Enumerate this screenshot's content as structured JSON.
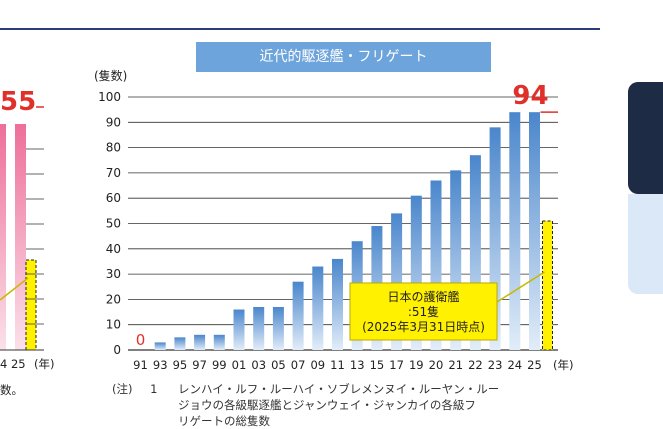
{
  "chart_data": [
    {
      "type": "bar",
      "title": "近代的駆逐艦・フリゲート",
      "ylabel": "(隻数)",
      "xlabel": "(年)",
      "ylim": [
        0,
        100
      ],
      "yticks": [
        0,
        10,
        20,
        30,
        40,
        50,
        60,
        70,
        80,
        90,
        100
      ],
      "categories": [
        "91",
        "93",
        "95",
        "97",
        "99",
        "01",
        "03",
        "05",
        "07",
        "09",
        "11",
        "13",
        "15",
        "17",
        "19",
        "20",
        "21",
        "22",
        "23",
        "24",
        "25"
      ],
      "series": [
        {
          "values": [
            0,
            3,
            5,
            6,
            6,
            16,
            17,
            17,
            27,
            33,
            36,
            43,
            49,
            54,
            61,
            67,
            71,
            77,
            88,
            94,
            94
          ]
        }
      ],
      "reference": {
        "value": 51,
        "category": "25",
        "label_lines": [
          "日本の護衛艦",
          ":51隻",
          "(2025年3月31日時点)"
        ]
      },
      "annotations": {
        "first_value_label": "0",
        "last_value_label": "94"
      }
    }
  ],
  "left_chart_partial": {
    "last_value_label": "55",
    "x_tail": "4 25",
    "xlabel": "(年)",
    "caption_tail": "数。"
  },
  "note": {
    "prefix": "(注)",
    "number": "1",
    "lines": [
      "レンハイ・ルフ・ルーハイ・ソブレメンヌイ・ルーヤン・ルー",
      "ジョウの各級駆逐艦とジャンウェイ・ジャンカイの各級フ",
      "リゲートの総隻数"
    ]
  },
  "colors": {
    "bar_top": "#4a86cc",
    "bar_bottom": "#e2edf9",
    "highlight_red": "#e0302a",
    "reference_yellow": "#fff100",
    "left_bar_pink": "#ee6f99",
    "title_bg": "#6ea4dc"
  }
}
